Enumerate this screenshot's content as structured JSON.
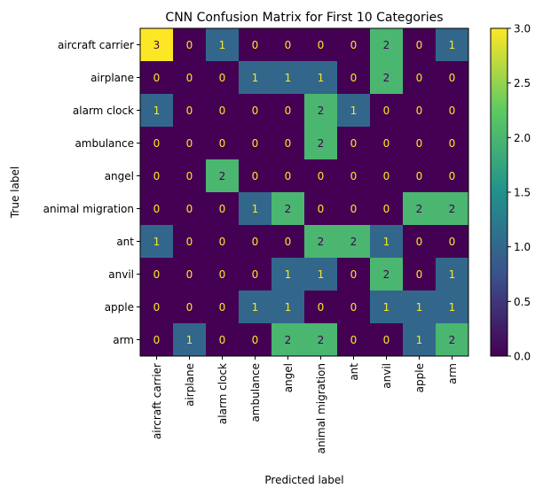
{
  "chart_data": {
    "type": "heatmap",
    "title": "CNN Confusion Matrix for First 10 Categories",
    "xlabel": "Predicted label",
    "ylabel": "True label",
    "x_categories": [
      "aircraft carrier",
      "airplane",
      "alarm clock",
      "ambulance",
      "angel",
      "animal migration",
      "ant",
      "anvil",
      "apple",
      "arm"
    ],
    "y_categories": [
      "aircraft carrier",
      "airplane",
      "alarm clock",
      "ambulance",
      "angel",
      "animal migration",
      "ant",
      "anvil",
      "apple",
      "arm"
    ],
    "values": [
      [
        3,
        0,
        1,
        0,
        0,
        0,
        0,
        2,
        0,
        1
      ],
      [
        0,
        0,
        0,
        1,
        1,
        1,
        0,
        2,
        0,
        0
      ],
      [
        1,
        0,
        0,
        0,
        0,
        2,
        1,
        0,
        0,
        0
      ],
      [
        0,
        0,
        0,
        0,
        0,
        2,
        0,
        0,
        0,
        0
      ],
      [
        0,
        0,
        2,
        0,
        0,
        0,
        0,
        0,
        0,
        0
      ],
      [
        0,
        0,
        0,
        1,
        2,
        0,
        0,
        0,
        2,
        2
      ],
      [
        1,
        0,
        0,
        0,
        0,
        2,
        2,
        1,
        0,
        0
      ],
      [
        0,
        0,
        0,
        0,
        1,
        1,
        0,
        2,
        0,
        1
      ],
      [
        0,
        0,
        0,
        1,
        1,
        0,
        0,
        1,
        1,
        1
      ],
      [
        0,
        1,
        0,
        0,
        2,
        2,
        0,
        0,
        1,
        2
      ]
    ],
    "colormap": "viridis",
    "colorbar": {
      "range": [
        0,
        3
      ],
      "ticks": [
        0.0,
        0.5,
        1.0,
        1.5,
        2.0,
        2.5,
        3.0
      ],
      "tick_labels": [
        "0.0",
        "0.5",
        "1.0",
        "1.5",
        "2.0",
        "2.5",
        "3.0"
      ]
    },
    "grid": false
  }
}
